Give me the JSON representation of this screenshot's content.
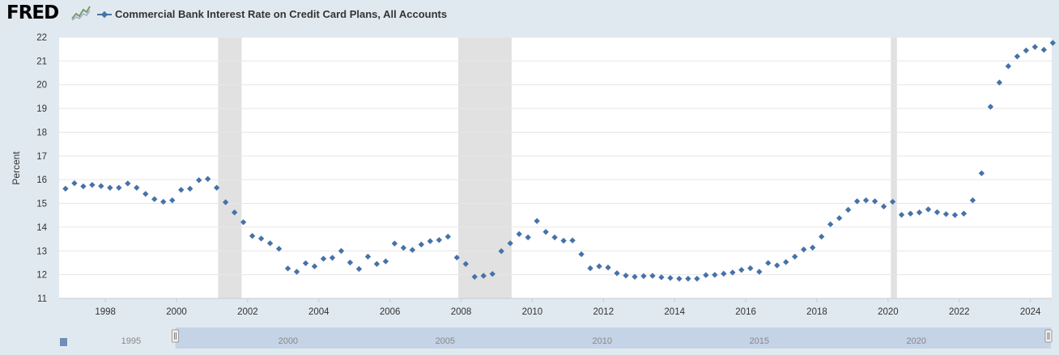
{
  "header": {
    "logo_text": "FRED",
    "logo_icon": "fred-graph-icon",
    "series_title": "Commercial Bank Interest Rate on Credit Card Plans, All Accounts"
  },
  "colors": {
    "series": "#4572a7",
    "recession": "#e1e1e1",
    "background": "#e1e9f0",
    "plot": "#ffffff",
    "grid": "#e6e6e6",
    "navigator": "#c5d3e6"
  },
  "chart_data": {
    "type": "scatter",
    "title": "Commercial Bank Interest Rate on Credit Card Plans, All Accounts",
    "xlabel": "",
    "ylabel": "Percent",
    "xlim": [
      1996.7,
      2024.6
    ],
    "ylim": [
      11,
      22
    ],
    "yticks": [
      11,
      12,
      13,
      14,
      15,
      16,
      17,
      18,
      19,
      20,
      21,
      22
    ],
    "xticks": [
      1998,
      2000,
      2002,
      2004,
      2006,
      2008,
      2010,
      2012,
      2014,
      2016,
      2018,
      2020,
      2022,
      2024
    ],
    "x": [
      1996.88,
      1997.13,
      1997.38,
      1997.63,
      1997.88,
      1998.13,
      1998.38,
      1998.63,
      1998.88,
      1999.13,
      1999.38,
      1999.63,
      1999.88,
      2000.13,
      2000.38,
      2000.63,
      2000.88,
      2001.13,
      2001.38,
      2001.63,
      2001.88,
      2002.13,
      2002.38,
      2002.63,
      2002.88,
      2003.13,
      2003.38,
      2003.63,
      2003.88,
      2004.13,
      2004.38,
      2004.63,
      2004.88,
      2005.13,
      2005.38,
      2005.63,
      2005.88,
      2006.13,
      2006.38,
      2006.63,
      2006.88,
      2007.13,
      2007.38,
      2007.63,
      2007.88,
      2008.13,
      2008.38,
      2008.63,
      2008.88,
      2009.13,
      2009.38,
      2009.63,
      2009.88,
      2010.13,
      2010.38,
      2010.63,
      2010.88,
      2011.13,
      2011.38,
      2011.63,
      2011.88,
      2012.13,
      2012.38,
      2012.63,
      2012.88,
      2013.13,
      2013.38,
      2013.63,
      2013.88,
      2014.13,
      2014.38,
      2014.63,
      2014.88,
      2015.13,
      2015.38,
      2015.63,
      2015.88,
      2016.13,
      2016.38,
      2016.63,
      2016.88,
      2017.13,
      2017.38,
      2017.63,
      2017.88,
      2018.13,
      2018.38,
      2018.63,
      2018.88,
      2019.13,
      2019.38,
      2019.63,
      2019.88,
      2020.13,
      2020.38,
      2020.63,
      2020.88,
      2021.13,
      2021.38,
      2021.63,
      2021.88,
      2022.13,
      2022.38,
      2022.63,
      2022.88,
      2023.13,
      2023.38,
      2023.63,
      2023.88,
      2024.13,
      2024.38,
      2024.63
    ],
    "values": [
      15.62,
      15.85,
      15.72,
      15.78,
      15.73,
      15.66,
      15.66,
      15.84,
      15.66,
      15.4,
      15.18,
      15.07,
      15.13,
      15.57,
      15.62,
      15.98,
      16.03,
      15.66,
      15.05,
      14.62,
      14.21,
      13.63,
      13.52,
      13.32,
      13.09,
      12.26,
      12.12,
      12.48,
      12.35,
      12.67,
      12.71,
      13.0,
      12.51,
      12.24,
      12.76,
      12.45,
      12.56,
      13.31,
      13.13,
      13.04,
      13.27,
      13.41,
      13.46,
      13.6,
      12.72,
      12.45,
      11.91,
      11.95,
      12.03,
      12.99,
      13.32,
      13.71,
      13.57,
      14.26,
      13.8,
      13.57,
      13.43,
      13.44,
      12.86,
      12.27,
      12.35,
      12.3,
      12.06,
      11.96,
      11.91,
      11.94,
      11.95,
      11.89,
      11.86,
      11.83,
      11.83,
      11.83,
      11.98,
      11.99,
      12.04,
      12.09,
      12.2,
      12.27,
      12.12,
      12.49,
      12.39,
      12.53,
      12.76,
      13.06,
      13.14,
      13.6,
      14.12,
      14.38,
      14.73,
      15.09,
      15.13,
      15.09,
      14.87,
      15.07,
      14.52,
      14.57,
      14.62,
      14.75,
      14.63,
      14.55,
      14.51,
      14.57,
      15.13,
      16.27,
      19.07,
      20.09,
      20.78,
      21.19,
      21.44,
      21.59,
      21.47,
      21.76
    ],
    "recessions": [
      [
        2001.17,
        2001.83
      ],
      [
        2007.92,
        2009.42
      ],
      [
        2020.08,
        2020.25
      ]
    ]
  },
  "navigator": {
    "labels": [
      "1995",
      "2000",
      "2005",
      "2010",
      "2015",
      "2020"
    ],
    "label_years": [
      1995,
      2000,
      2005,
      2010,
      2015,
      2020
    ],
    "range_start": 1996.7,
    "range_end": 2024.6,
    "data_start": 1993.0
  }
}
